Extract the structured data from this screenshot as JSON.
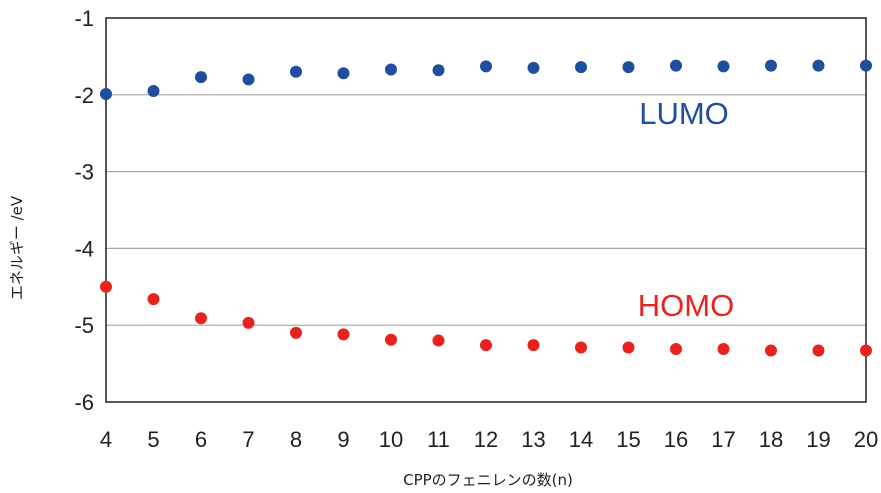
{
  "chart_data": {
    "type": "scatter",
    "title": "",
    "xlabel": "CPPのフェニレンの数(n)",
    "ylabel": "エネルギー /eV",
    "xlim": [
      4,
      20
    ],
    "ylim": [
      -6,
      -1
    ],
    "x_ticks": [
      "4",
      "5",
      "6",
      "7",
      "8",
      "9",
      "10",
      "11",
      "12",
      "13",
      "14",
      "15",
      "16",
      "17",
      "18",
      "19",
      "20"
    ],
    "y_ticks": [
      "-1",
      "-2",
      "-3",
      "-4",
      "-5",
      "-6"
    ],
    "grid": "horizontal",
    "x": [
      4,
      5,
      6,
      7,
      8,
      9,
      10,
      11,
      12,
      13,
      14,
      15,
      16,
      17,
      18,
      19,
      20
    ],
    "series": [
      {
        "name": "LUMO",
        "color": "#1f4e9e",
        "values": [
          -1.99,
          -1.95,
          -1.77,
          -1.8,
          -1.7,
          -1.72,
          -1.67,
          -1.68,
          -1.63,
          -1.65,
          -1.64,
          -1.64,
          -1.62,
          -1.63,
          -1.62,
          -1.62,
          -1.62
        ]
      },
      {
        "name": "HOMO",
        "color": "#e8231e",
        "values": [
          -4.5,
          -4.66,
          -4.91,
          -4.97,
          -5.1,
          -5.12,
          -5.19,
          -5.2,
          -5.26,
          -5.26,
          -5.29,
          -5.29,
          -5.31,
          -5.31,
          -5.33,
          -5.33,
          -5.33
        ]
      }
    ]
  }
}
